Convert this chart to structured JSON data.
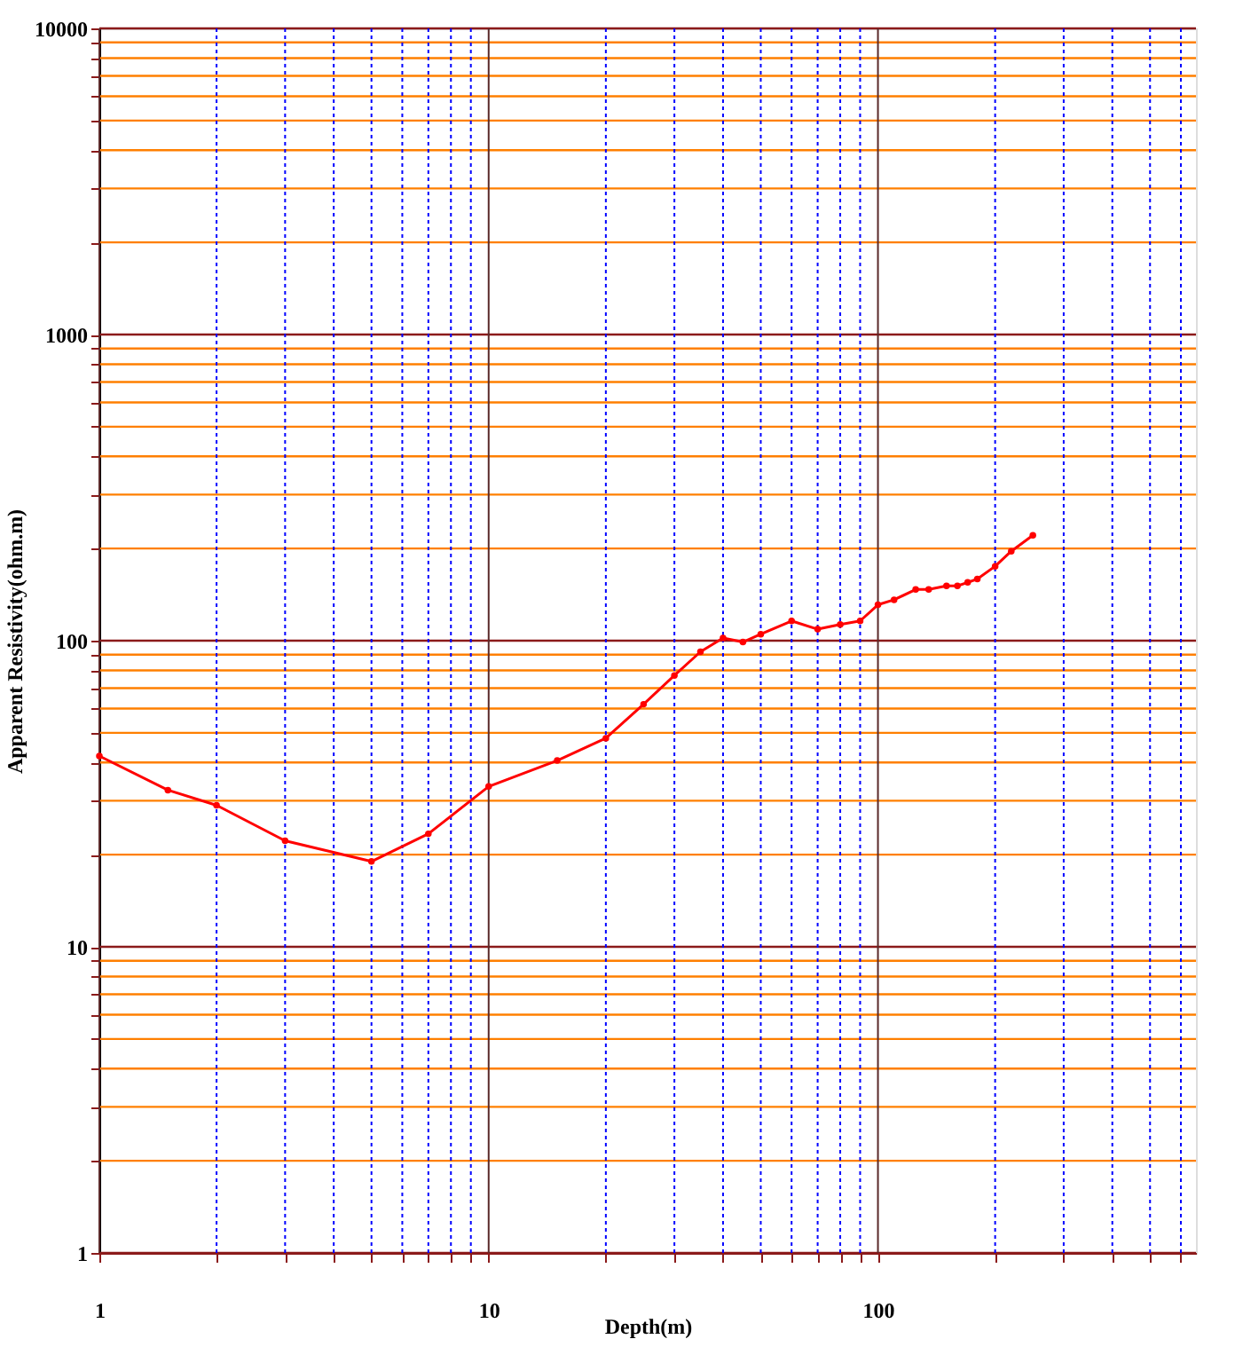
{
  "chart_data": {
    "type": "line",
    "xlabel": "Depth(m)",
    "ylabel": "Apparent Resistivity(ohm.m)",
    "log": "xy",
    "grid": true,
    "marker": "circle",
    "line_style": "solid",
    "xlim": [
      1,
      656
    ],
    "ylim": [
      1,
      10000
    ],
    "xticks": [
      1,
      {
        "value": 2,
        "label": null
      },
      {
        "value": 3,
        "label": null
      },
      {
        "value": 4,
        "label": null
      },
      {
        "value": 5,
        "label": null
      },
      {
        "value": 6,
        "label": null
      },
      {
        "value": 7,
        "label": null
      },
      {
        "value": 8,
        "label": null
      },
      {
        "value": 9,
        "label": null
      },
      10,
      {
        "value": 20,
        "label": null
      },
      {
        "value": 30,
        "label": null
      },
      {
        "value": 40,
        "label": null
      },
      {
        "value": 50,
        "label": null
      },
      {
        "value": 60,
        "label": null
      },
      {
        "value": 70,
        "label": null
      },
      {
        "value": 80,
        "label": null
      },
      {
        "value": 90,
        "label": null
      },
      100,
      {
        "value": 200,
        "label": null
      },
      {
        "value": 300,
        "label": null
      },
      {
        "value": 400,
        "label": null
      },
      {
        "value": 500,
        "label": null
      },
      {
        "value": 600,
        "label": null
      }
    ],
    "yticks": [
      1,
      {
        "value": 2,
        "label": null
      },
      {
        "value": 3,
        "label": null
      },
      {
        "value": 4,
        "label": null
      },
      {
        "value": 5,
        "label": null
      },
      {
        "value": 6,
        "label": null
      },
      {
        "value": 7,
        "label": null
      },
      {
        "value": 8,
        "label": null
      },
      {
        "value": 9,
        "label": null
      },
      10,
      {
        "value": 20,
        "label": null
      },
      {
        "value": 30,
        "label": null
      },
      {
        "value": 40,
        "label": null
      },
      {
        "value": 50,
        "label": null
      },
      {
        "value": 60,
        "label": null
      },
      {
        "value": 70,
        "label": null
      },
      {
        "value": 80,
        "label": null
      },
      {
        "value": 90,
        "label": null
      },
      100,
      {
        "value": 200,
        "label": null
      },
      {
        "value": 300,
        "label": null
      },
      {
        "value": 400,
        "label": null
      },
      {
        "value": 500,
        "label": null
      },
      {
        "value": 600,
        "label": null
      },
      {
        "value": 700,
        "label": null
      },
      {
        "value": 800,
        "label": null
      },
      {
        "value": 900,
        "label": null
      },
      1000,
      {
        "value": 2000,
        "label": null
      },
      {
        "value": 3000,
        "label": null
      },
      {
        "value": 4000,
        "label": null
      },
      {
        "value": 5000,
        "label": null
      },
      {
        "value": 6000,
        "label": null
      },
      {
        "value": 7000,
        "label": null
      },
      {
        "value": 8000,
        "label": null
      },
      {
        "value": 9000,
        "label": null
      },
      10000
    ],
    "series": [
      {
        "color": "#ff0000",
        "x": [
          1,
          1.5,
          2,
          3,
          5,
          7,
          10,
          15,
          20,
          25,
          30,
          35,
          40,
          45,
          50,
          60,
          70,
          80,
          90,
          100,
          110,
          125,
          135,
          150,
          160,
          170,
          180,
          200,
          220,
          250
        ],
        "values": [
          42,
          32.5,
          29,
          22.2,
          19,
          23.4,
          33.4,
          40.6,
          48,
          62,
          77,
          92,
          102,
          99,
          105,
          116,
          109,
          113,
          116,
          131,
          136,
          147,
          147,
          151,
          151,
          155,
          159,
          175,
          196,
          221
        ]
      }
    ]
  }
}
